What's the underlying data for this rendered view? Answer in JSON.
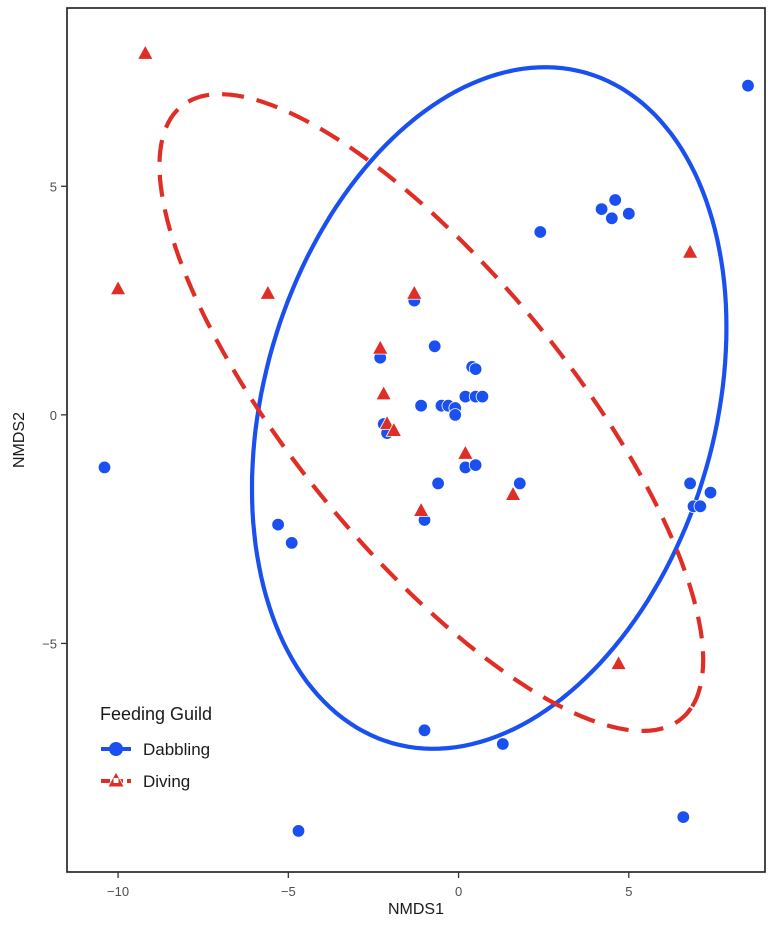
{
  "chart_data": {
    "type": "scatter",
    "title": "",
    "xlabel": "NMDS1",
    "ylabel": "NMDS2",
    "xlim": [
      -11.5,
      9.0
    ],
    "ylim": [
      -10.0,
      8.9
    ],
    "x_ticks": [
      -10,
      -5,
      0,
      5
    ],
    "y_ticks": [
      -5,
      0,
      5
    ],
    "x_tick_labels": [
      "−10",
      "−5",
      "0",
      "5"
    ],
    "y_tick_labels": [
      "−5",
      "0",
      "5"
    ],
    "grid": false,
    "legend": {
      "title": "Feeding Guild",
      "position": "bottom-left",
      "entries": [
        "Dabbling",
        "Diving"
      ]
    },
    "series": [
      {
        "name": "Dabbling",
        "marker": "circle",
        "color": "#1a4ff0",
        "ellipse_style": "solid",
        "points": [
          {
            "x": 8.5,
            "y": 7.2
          },
          {
            "x": -10.4,
            "y": -1.15
          },
          {
            "x": 4.2,
            "y": 4.5
          },
          {
            "x": 4.6,
            "y": 4.7
          },
          {
            "x": 4.5,
            "y": 4.3
          },
          {
            "x": 5.0,
            "y": 4.4
          },
          {
            "x": 2.4,
            "y": 4.0
          },
          {
            "x": -1.3,
            "y": 2.5
          },
          {
            "x": -2.3,
            "y": 1.25
          },
          {
            "x": -0.7,
            "y": 1.5
          },
          {
            "x": 0.4,
            "y": 1.05
          },
          {
            "x": 0.5,
            "y": 1.0
          },
          {
            "x": -1.1,
            "y": 0.2
          },
          {
            "x": -0.5,
            "y": 0.2
          },
          {
            "x": -0.3,
            "y": 0.2
          },
          {
            "x": -0.1,
            "y": 0.15
          },
          {
            "x": -0.1,
            "y": 0.0
          },
          {
            "x": 0.2,
            "y": 0.4
          },
          {
            "x": 0.5,
            "y": 0.4
          },
          {
            "x": 0.7,
            "y": 0.4
          },
          {
            "x": -2.2,
            "y": -0.2
          },
          {
            "x": -2.1,
            "y": -0.4
          },
          {
            "x": 0.2,
            "y": -1.15
          },
          {
            "x": 0.5,
            "y": -1.1
          },
          {
            "x": -0.6,
            "y": -1.5
          },
          {
            "x": 1.8,
            "y": -1.5
          },
          {
            "x": 6.8,
            "y": -1.5
          },
          {
            "x": 7.4,
            "y": -1.7
          },
          {
            "x": 6.9,
            "y": -2.0
          },
          {
            "x": 7.1,
            "y": -2.0
          },
          {
            "x": -1.0,
            "y": -2.3
          },
          {
            "x": -5.3,
            "y": -2.4
          },
          {
            "x": -4.9,
            "y": -2.8
          },
          {
            "x": -1.0,
            "y": -6.9
          },
          {
            "x": 1.3,
            "y": -7.2
          },
          {
            "x": 6.6,
            "y": -8.8
          },
          {
            "x": -4.7,
            "y": -9.1
          }
        ]
      },
      {
        "name": "Diving",
        "marker": "triangle",
        "color": "#e02d25",
        "ellipse_style": "dashed",
        "points": [
          {
            "x": -9.2,
            "y": 7.9
          },
          {
            "x": -10.0,
            "y": 2.75
          },
          {
            "x": -5.6,
            "y": 2.65
          },
          {
            "x": -1.3,
            "y": 2.65
          },
          {
            "x": 6.8,
            "y": 3.55
          },
          {
            "x": -2.3,
            "y": 1.45
          },
          {
            "x": -2.2,
            "y": 0.45
          },
          {
            "x": -2.1,
            "y": -0.2
          },
          {
            "x": -1.9,
            "y": -0.35
          },
          {
            "x": 0.2,
            "y": -0.85
          },
          {
            "x": 1.6,
            "y": -1.75
          },
          {
            "x": -1.1,
            "y": -2.1
          },
          {
            "x": 4.7,
            "y": -5.45
          }
        ]
      }
    ],
    "ellipses": [
      {
        "series": "Dabbling",
        "cx": 0.9,
        "cy": 0.15,
        "rx": 8.05,
        "ry": 6.27,
        "angle_deg": 53
      },
      {
        "series": "Diving",
        "cx": -0.8,
        "cy": 0.05,
        "rx": 10.0,
        "ry": 3.5,
        "angle_deg": -40
      }
    ]
  }
}
